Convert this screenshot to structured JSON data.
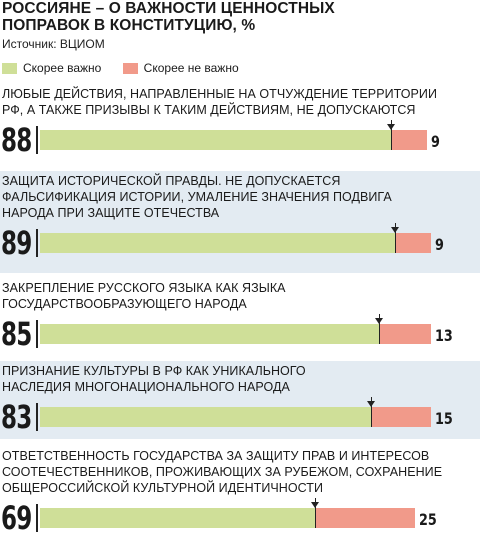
{
  "title_line1": "РОССИЯНЕ – О ВАЖНОСТИ ЦЕННОСТНЫХ",
  "title_line2": "ПОПРАВОК В КОНСТИТУЦИЮ, %",
  "source": "Источник: ВЦИОМ",
  "colors": {
    "green": "#cfdf98",
    "salmon": "#f19a8a",
    "shade": "#e3ebf2"
  },
  "chart_data": {
    "type": "bar",
    "title": "РОССИЯНЕ – О ВАЖНОСТИ ЦЕННОСТНЫХ ПОПРАВОК В КОНСТИТУЦИЮ, %",
    "categories": [
      "ЛЮБЫЕ ДЕЙСТВИЯ, НАПРАВЛЕННЫЕ НА ОТЧУЖДЕНИЕ ТЕРРИТОРИИ РФ, А ТАКЖЕ ПРИЗЫВЫ К ТАКИМ ДЕЙСТВИЯМ, НЕ ДОПУСКАЮТСЯ",
      "ЗАЩИТА ИСТОРИЧЕСКОЙ ПРАВДЫ. НЕ ДОПУСКАЕТСЯ ФАЛЬСИФИКАЦИЯ ИСТОРИИ, УМАЛЕНИЕ ЗНАЧЕНИЯ ПОДВИГА НАРОДА ПРИ ЗАЩИТЕ ОТЕЧЕСТВА",
      "ЗАКРЕПЛЕНИЕ РУССКОГО ЯЗЫКА КАК ЯЗЫКА ГОСУДАРСТВООБРАЗУЮЩЕГО НАРОДА",
      "ПРИЗНАНИЕ КУЛЬТУРЫ В РФ КАК УНИКАЛЬНОГО НАСЛЕДИЯ МНОГОНАЦИОНАЛЬНОГО НАРОДА",
      "ОТВЕТСТВЕННОСТЬ ГОСУДАРСТВА ЗА ЗАЩИТУ ПРАВ И ИНТЕРЕСОВ СООТЕЧЕСТВЕННИКОВ, ПРОЖИВАЮЩИХ ЗА РУБЕЖОМ, СОХРАНЕНИЕ ОБЩЕРОССИЙСКОЙ КУЛЬТУРНОЙ ИДЕНТИЧНОСТИ"
    ],
    "label_lines": [
      [
        "ЛЮБЫЕ ДЕЙСТВИЯ, НАПРАВЛЕННЫЕ НА ОТЧУЖДЕНИЕ ТЕРРИТОРИИ",
        "РФ, А ТАКЖЕ ПРИЗЫВЫ К ТАКИМ ДЕЙСТВИЯМ, НЕ ДОПУСКАЮТСЯ"
      ],
      [
        "ЗАЩИТА ИСТОРИЧЕСКОЙ ПРАВДЫ. НЕ ДОПУСКАЕТСЯ",
        "ФАЛЬСИФИКАЦИЯ ИСТОРИИ, УМАЛЕНИЕ ЗНАЧЕНИЯ ПОДВИГА",
        "НАРОДА ПРИ ЗАЩИТЕ ОТЕЧЕСТВА"
      ],
      [
        "ЗАКРЕПЛЕНИЕ РУССКОГО ЯЗЫКА КАК ЯЗЫКА",
        "ГОСУДАРСТВООБРАЗУЮЩЕГО НАРОДА"
      ],
      [
        "ПРИЗНАНИЕ КУЛЬТУРЫ В РФ КАК УНИКАЛЬНОГО",
        "НАСЛЕДИЯ МНОГОНАЦИОНАЛЬНОГО НАРОДА"
      ],
      [
        "ОТВЕТСТВЕННОСТЬ ГОСУДАРСТВА ЗА ЗАЩИТУ ПРАВ И ИНТЕРЕСОВ",
        "СООТЕЧЕСТВЕННИКОВ, ПРОЖИВАЮЩИХ ЗА РУБЕЖОМ, СОХРАНЕНИЕ",
        "ОБЩЕРОССИЙСКОЙ КУЛЬТУРНОЙ ИДЕНТИЧНОСТИ"
      ]
    ],
    "series": [
      {
        "name": "Скорее важно",
        "values": [
          88,
          89,
          85,
          83,
          69
        ]
      },
      {
        "name": "Скорее не важно",
        "values": [
          9,
          9,
          13,
          15,
          25
        ]
      }
    ],
    "stacked": true,
    "orientation": "horizontal",
    "xlim": [
      0,
      100
    ],
    "legend": "top-left",
    "grid": false
  }
}
